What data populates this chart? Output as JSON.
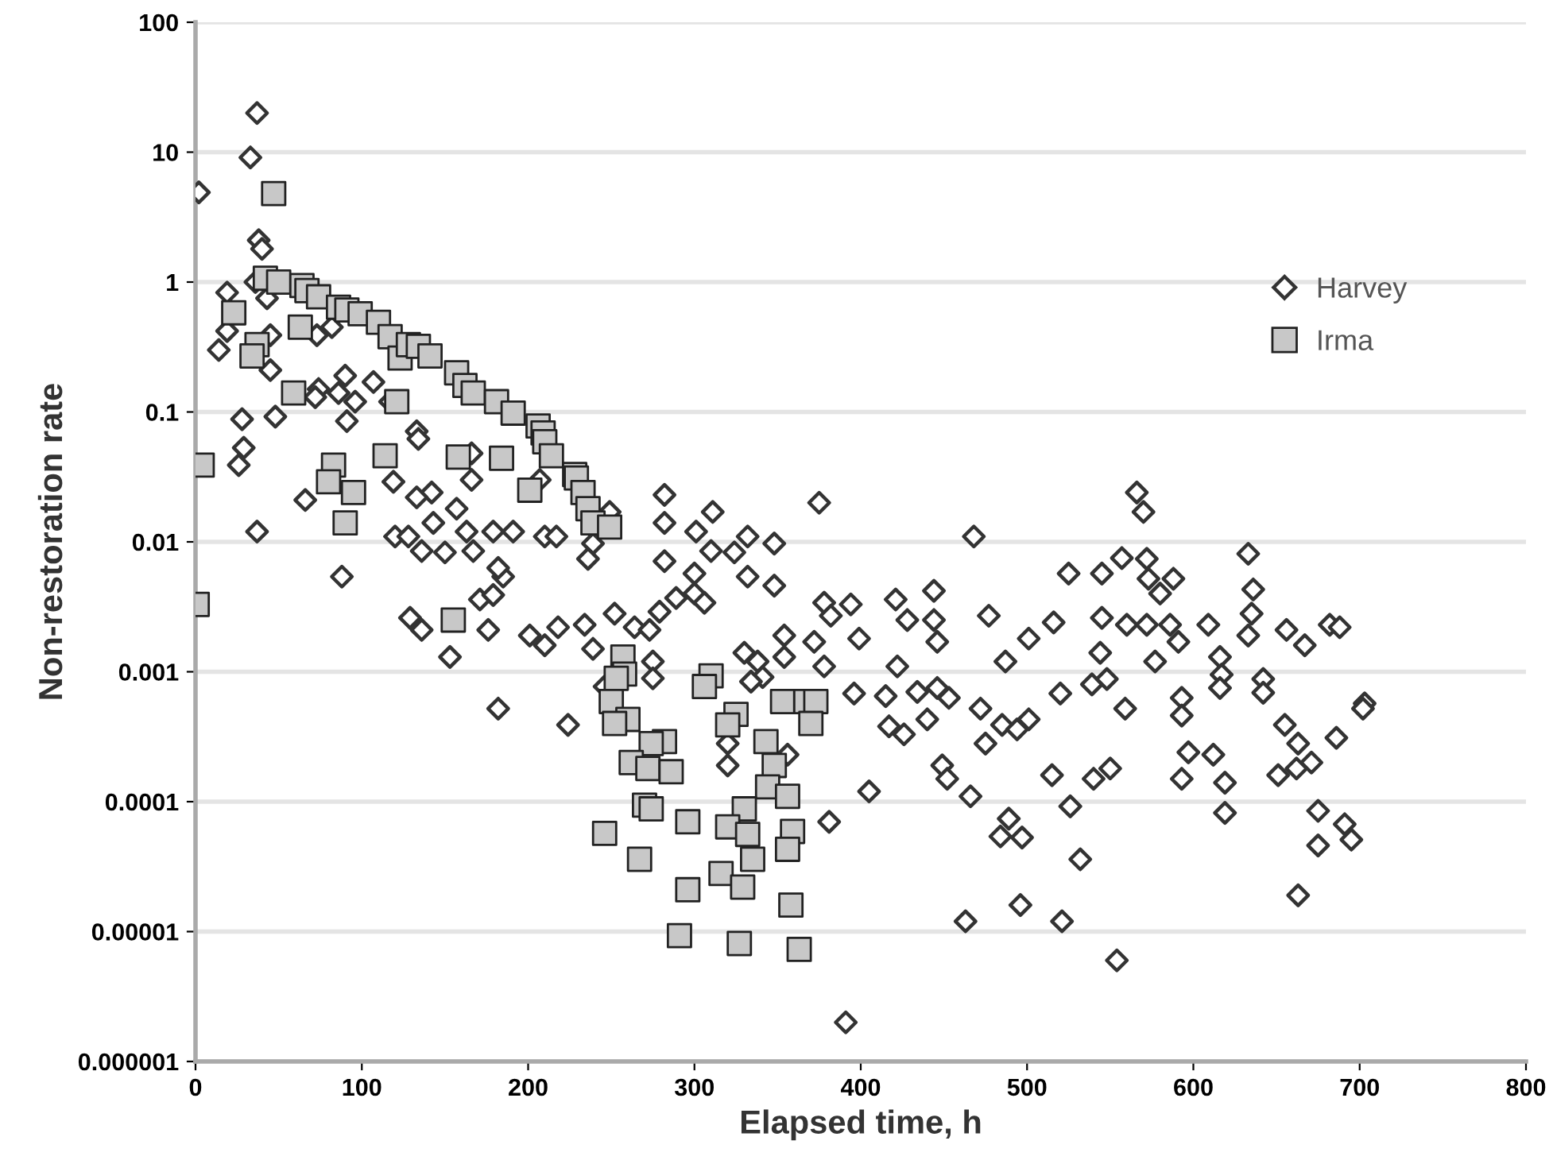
{
  "chart_data": {
    "type": "scatter",
    "xlabel": "Elapsed time, h",
    "ylabel": "Non-restoration rate",
    "log": "y",
    "grid": "y",
    "legend": "top right",
    "xlim": [
      0,
      800
    ],
    "xticks": [
      0,
      100,
      200,
      300,
      400,
      500,
      600,
      700,
      800
    ],
    "ylim": [
      1e-06,
      100
    ],
    "yticks": [
      {
        "value": 1e-06,
        "label": "0.000001"
      },
      {
        "value": 1e-05,
        "label": "0.00001"
      },
      {
        "value": 0.0001,
        "label": "0.0001"
      },
      {
        "value": 0.001,
        "label": "0.001"
      },
      {
        "value": 0.01,
        "label": "0.01"
      },
      0.1,
      1,
      10,
      100
    ],
    "series": [
      {
        "name": "Harvey",
        "color": "#333333",
        "marker": "diamond",
        "x": [
          2,
          33,
          37,
          38,
          40,
          36,
          19,
          43,
          19,
          14,
          45,
          45,
          73,
          82,
          28,
          29,
          26,
          48,
          37,
          66,
          90,
          74,
          72,
          86,
          96,
          91,
          107,
          117,
          133,
          134,
          166,
          166,
          119,
          142,
          143,
          157,
          163,
          179,
          191,
          133,
          120,
          128,
          136,
          150,
          167,
          210,
          217,
          207,
          249,
          239,
          236,
          185,
          88,
          182,
          171,
          179,
          129,
          136,
          153,
          176,
          182,
          201,
          210,
          218,
          234,
          239,
          224,
          252,
          264,
          273,
          279,
          289,
          300,
          306,
          282,
          282,
          311,
          301,
          310,
          324,
          332,
          348,
          300,
          282,
          332,
          348,
          375,
          378,
          382,
          354,
          330,
          338,
          341,
          334,
          354,
          372,
          378,
          275,
          275,
          246,
          320,
          320,
          356,
          381,
          391,
          468,
          566,
          570,
          525,
          545,
          557,
          572,
          573,
          588,
          580,
          545,
          516,
          501,
          477,
          487,
          544,
          560,
          572,
          586,
          591,
          577,
          421,
          444,
          428,
          444,
          446,
          394,
          399,
          422,
          434,
          446,
          453,
          417,
          426,
          440,
          415,
          396,
          472,
          485,
          475,
          494,
          501,
          520,
          539,
          548,
          559,
          593,
          593,
          597,
          593,
          449,
          452,
          466,
          515,
          540,
          550,
          526,
          489,
          484,
          497,
          532,
          496,
          463,
          521,
          554,
          405,
          633,
          636,
          635,
          633,
          609,
          656,
          667,
          682,
          688,
          616,
          617,
          616,
          642,
          642,
          655,
          663,
          671,
          662,
          651,
          686,
          703,
          702,
          612,
          619,
          619,
          675,
          691,
          695,
          675,
          663
        ],
        "values": [
          4.9,
          9.1,
          20,
          2.1,
          1.8,
          1.0,
          0.83,
          0.75,
          0.42,
          0.3,
          0.39,
          0.21,
          0.39,
          0.45,
          0.088,
          0.053,
          0.039,
          0.092,
          0.012,
          0.021,
          0.19,
          0.15,
          0.13,
          0.14,
          0.12,
          0.085,
          0.17,
          0.12,
          0.071,
          0.062,
          0.03,
          0.048,
          0.029,
          0.024,
          0.014,
          0.018,
          0.012,
          0.012,
          0.012,
          0.022,
          0.011,
          0.011,
          0.0085,
          0.0083,
          0.0085,
          0.011,
          0.011,
          0.03,
          0.017,
          0.0097,
          0.0074,
          0.0054,
          0.0054,
          0.0063,
          0.0036,
          0.0039,
          0.0026,
          0.0021,
          0.0013,
          0.0021,
          0.00052,
          0.0019,
          0.0016,
          0.0022,
          0.0023,
          0.0015,
          0.00039,
          0.0028,
          0.0022,
          0.0021,
          0.0029,
          0.0037,
          0.004,
          0.0034,
          0.023,
          0.014,
          0.017,
          0.012,
          0.0085,
          0.0083,
          0.011,
          0.0097,
          0.0057,
          0.0071,
          0.0054,
          0.0046,
          0.02,
          0.0034,
          0.0027,
          0.0019,
          0.0014,
          0.0012,
          0.00091,
          0.00084,
          0.0013,
          0.0017,
          0.0011,
          0.0012,
          0.00089,
          0.00077,
          0.00028,
          0.00019,
          0.00023,
          7e-05,
          2e-06,
          0.011,
          0.024,
          0.017,
          0.0057,
          0.0057,
          0.0075,
          0.0074,
          0.0052,
          0.0052,
          0.004,
          0.0026,
          0.0024,
          0.0018,
          0.0027,
          0.0012,
          0.0014,
          0.0023,
          0.0023,
          0.0023,
          0.0017,
          0.0012,
          0.0036,
          0.0042,
          0.0025,
          0.0025,
          0.0017,
          0.0033,
          0.0018,
          0.0011,
          0.0007,
          0.00075,
          0.00063,
          0.00038,
          0.00033,
          0.00043,
          0.00065,
          0.00068,
          0.00052,
          0.00039,
          0.00028,
          0.00036,
          0.00043,
          0.00068,
          0.0008,
          0.00088,
          0.00052,
          0.00063,
          0.00046,
          0.00024,
          0.00015,
          0.00019,
          0.00015,
          0.00011,
          0.00016,
          0.00015,
          0.00018,
          9.2e-05,
          7.4e-05,
          5.4e-05,
          5.3e-05,
          3.6e-05,
          1.6e-05,
          1.2e-05,
          1.2e-05,
          6e-06,
          0.00012,
          0.0081,
          0.0043,
          0.0028,
          0.0019,
          0.0023,
          0.0021,
          0.0016,
          0.0023,
          0.0022,
          0.0013,
          0.00095,
          0.00075,
          0.00088,
          0.00069,
          0.00039,
          0.00028,
          0.0002,
          0.00018,
          0.00016,
          0.00031,
          0.00057,
          0.00052,
          0.00023,
          0.00014,
          8.2e-05,
          8.5e-05,
          6.7e-05,
          5.1e-05,
          4.6e-05,
          1.9e-05
        ]
      },
      {
        "name": "Irma",
        "color": "#c8c8c8",
        "marker": "square",
        "x": [
          1,
          4,
          47,
          42,
          50,
          23,
          37,
          34,
          64,
          67,
          74,
          63,
          59,
          86,
          91,
          99,
          110,
          117,
          123,
          128,
          134,
          141,
          121,
          157,
          162,
          167,
          181,
          191,
          206,
          209,
          210,
          214,
          228,
          229,
          233,
          236,
          239,
          249,
          201,
          184,
          158,
          114,
          83,
          80,
          95,
          90,
          155,
          257,
          258,
          253,
          250,
          260,
          252,
          282,
          274,
          262,
          272,
          286,
          270,
          274,
          246,
          267,
          296,
          310,
          306,
          325,
          320,
          343,
          348,
          344,
          356,
          330,
          320,
          332,
          359,
          356,
          335,
          316,
          329,
          296,
          358,
          291,
          327,
          363,
          353,
          367,
          373,
          370
        ],
        "values": [
          0.0033,
          0.039,
          4.8,
          1.07,
          1.0,
          0.58,
          0.33,
          0.27,
          0.94,
          0.86,
          0.77,
          0.45,
          0.14,
          0.64,
          0.61,
          0.57,
          0.49,
          0.38,
          0.26,
          0.33,
          0.32,
          0.27,
          0.12,
          0.2,
          0.16,
          0.14,
          0.12,
          0.098,
          0.078,
          0.069,
          0.059,
          0.046,
          0.033,
          0.031,
          0.024,
          0.018,
          0.014,
          0.013,
          0.025,
          0.044,
          0.045,
          0.046,
          0.039,
          0.029,
          0.024,
          0.014,
          0.0025,
          0.0013,
          0.00096,
          0.00089,
          0.00059,
          0.00043,
          0.0004,
          0.00029,
          0.00028,
          0.0002,
          0.00018,
          0.00017,
          9.4e-05,
          8.8e-05,
          5.7e-05,
          3.6e-05,
          7e-05,
          0.00093,
          0.00077,
          0.00047,
          0.00039,
          0.00029,
          0.00019,
          0.00013,
          0.00011,
          8.8e-05,
          6.4e-05,
          5.6e-05,
          5.9e-05,
          4.3e-05,
          3.6e-05,
          2.8e-05,
          2.2e-05,
          2.1e-05,
          1.6e-05,
          9.3e-06,
          8.1e-06,
          7.3e-06,
          0.00059,
          0.00059,
          0.00059,
          0.0004
        ]
      }
    ]
  }
}
